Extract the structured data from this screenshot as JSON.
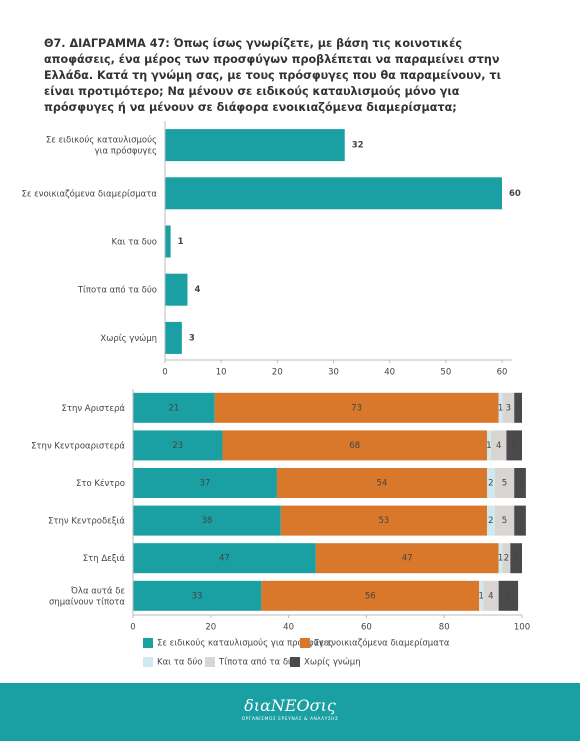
{
  "chart_data": [
    {
      "type": "hbar",
      "title": "Θ7. ΔΙΑΓΡΑΜΜΑ 47: Όπως ίσως γνωρίζετε, με βάση τις κοινοτικές αποφάσεις, ένα μέρος των προσφύγων προβλέπεται να παραμείνει στην Ελλάδα. Κατά τη γνώμη σας, με τους πρόσφυγες που θα παραμείνουν, τι είναι προτιμότερο; Να μένουν σε ειδικούς καταυλισμούς μόνο για πρόσφυγες ή να μένουν σε διάφορα ενοικιαζόμενα διαμερίσματα;",
      "categories": [
        "Σε ειδικούς καταυλισμούς για πρόσφυγες",
        "Σε ενοικιαζόμενα διαμερίσματα",
        "Και τα δυο",
        "Τίποτα από τα δύο",
        "Χωρίς γνώμη"
      ],
      "values": [
        32,
        60,
        1,
        4,
        3
      ],
      "color": "#1a9fa3",
      "xlim": [
        0,
        60
      ],
      "xticks": [
        0,
        10,
        20,
        30,
        40,
        50,
        60
      ]
    },
    {
      "type": "stacked-hbar",
      "categories": [
        "Στην Αριστερά",
        "Στην Κεντροαριστερά",
        "Στο Κέντρο",
        "Στην Κεντροδεξιά",
        "Στη Δεξιά",
        "Όλα αυτά δε σημαίνουν τίποτα"
      ],
      "series": [
        {
          "name": "Σε ειδικούς καταυλισμούς για πρόσφυγες",
          "color": "#1a9fa3",
          "values": [
            21,
            23,
            37,
            38,
            47,
            33
          ]
        },
        {
          "name": "Σε ενοικιαζόμενα διαμερίσματα",
          "color": "#d9782b",
          "values": [
            73,
            68,
            54,
            53,
            47,
            56
          ]
        },
        {
          "name": "Και τα δύο",
          "color": "#cfe9f0",
          "values": [
            1,
            1,
            2,
            2,
            1,
            1
          ]
        },
        {
          "name": "Τίποτα από τα δύο",
          "color": "#d9d5d2",
          "values": [
            3,
            4,
            5,
            5,
            2,
            4
          ]
        },
        {
          "name": "Χωρίς γνώμη",
          "color": "#4a4a4c",
          "values": [
            2,
            4,
            3,
            3,
            3,
            5
          ]
        }
      ],
      "xlim": [
        0,
        100
      ],
      "xticks": [
        0,
        20,
        40,
        60,
        80,
        100
      ]
    }
  ],
  "footer": {
    "logo": "διαΝΕΟσις",
    "tagline": "ΟΡΓΑΝΙΣΜΟΣ ΕΡΕΥΝΑΣ & ΑΝΑΛΥΣΗΣ"
  }
}
